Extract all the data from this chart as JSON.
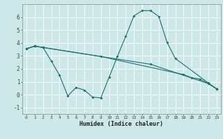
{
  "line1_x": [
    0,
    1,
    2,
    9,
    19,
    20,
    21,
    22,
    23
  ],
  "line1_y": [
    3.55,
    3.75,
    3.65,
    2.95,
    1.55,
    1.3,
    1.2,
    0.85,
    0.45
  ],
  "line2_x": [
    0,
    1,
    2,
    3,
    4,
    5,
    6,
    7,
    8,
    9,
    10,
    11,
    12,
    13,
    14,
    15,
    16,
    17,
    18,
    22,
    23
  ],
  "line2_y": [
    3.55,
    3.75,
    3.65,
    2.6,
    1.5,
    -0.1,
    0.55,
    0.35,
    -0.2,
    -0.25,
    1.35,
    2.95,
    4.5,
    6.1,
    6.5,
    6.5,
    6.05,
    4.05,
    2.8,
    0.9,
    0.45
  ],
  "line3_x": [
    0,
    1,
    2,
    15,
    22,
    23
  ],
  "line3_y": [
    3.55,
    3.75,
    3.65,
    2.35,
    0.85,
    0.45
  ],
  "bg_color": "#cce8e8",
  "line_color": "#1a7070",
  "grid_color": "#b0d8d8",
  "xlabel": "Humidex (Indice chaleur)",
  "ylim": [
    -1.5,
    7.0
  ],
  "xlim": [
    -0.5,
    23.5
  ],
  "yticks": [
    -1,
    0,
    1,
    2,
    3,
    4,
    5,
    6
  ],
  "xticks": [
    0,
    1,
    2,
    3,
    4,
    5,
    6,
    7,
    8,
    9,
    10,
    11,
    12,
    13,
    14,
    15,
    16,
    17,
    18,
    19,
    20,
    21,
    22,
    23
  ]
}
